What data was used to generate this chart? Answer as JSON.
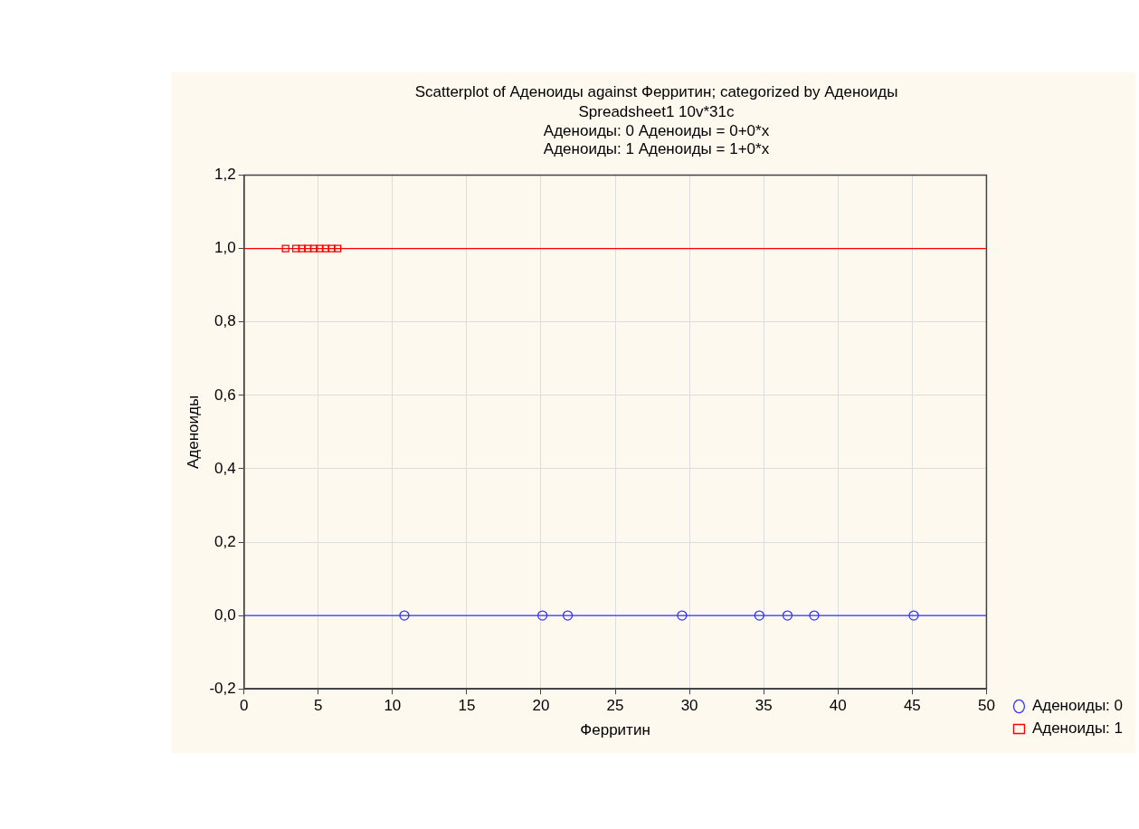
{
  "chart_data": {
    "type": "scatter",
    "title": "Scatterplot of Аденоиды against Ферритин; categorized by Аденоиды",
    "subtitle": "Spreadsheet1 10v*31c",
    "annotations": [
      "Аденоиды: 0 Аденоиды = 0+0*x",
      "Аденоиды: 1 Аденоиды = 1+0*x"
    ],
    "xlabel": "Ферритин",
    "ylabel": "Аденоиды",
    "series": [
      {
        "name": "Аденоиды: 0",
        "color": "#3333ff",
        "marker": "circle",
        "x": [
          10.8,
          20.1,
          21.8,
          29.5,
          34.7,
          36.6,
          38.4,
          45.1
        ],
        "values": [
          0,
          0,
          0,
          0,
          0,
          0,
          0,
          0
        ]
      },
      {
        "name": "Аденоиды: 1",
        "color": "#ff0000",
        "marker": "square",
        "x": [
          2.8,
          3.5,
          3.9,
          4.3,
          4.7,
          5.1,
          5.5,
          5.9,
          6.3
        ],
        "values": [
          1,
          1,
          1,
          1,
          1,
          1,
          1,
          1,
          1
        ]
      },
      {
        "type": "line",
        "color": "#3333ff",
        "marker": "none",
        "x": [
          0,
          50
        ],
        "values": [
          0,
          0
        ]
      },
      {
        "type": "line",
        "color": "#ff0000",
        "marker": "none",
        "x": [
          0,
          50
        ],
        "values": [
          1,
          1
        ]
      }
    ],
    "xlim": [
      0,
      50
    ],
    "xticks": [
      0,
      5,
      10,
      15,
      20,
      25,
      30,
      35,
      40,
      45,
      50
    ],
    "ylim": [
      -0.2,
      1.2
    ],
    "yticks": [
      {
        "value": -0.2,
        "label": "-0,2"
      },
      {
        "value": 0,
        "label": "0,0"
      },
      {
        "value": 0.2,
        "label": "0,2"
      },
      {
        "value": 0.4,
        "label": "0,4"
      },
      {
        "value": 0.6,
        "label": "0,6"
      },
      {
        "value": 0.8,
        "label": "0,8"
      },
      {
        "value": 1,
        "label": "1,0"
      },
      {
        "value": 1.2,
        "label": "1,2"
      }
    ],
    "grid": true,
    "legend": "bottom right"
  }
}
